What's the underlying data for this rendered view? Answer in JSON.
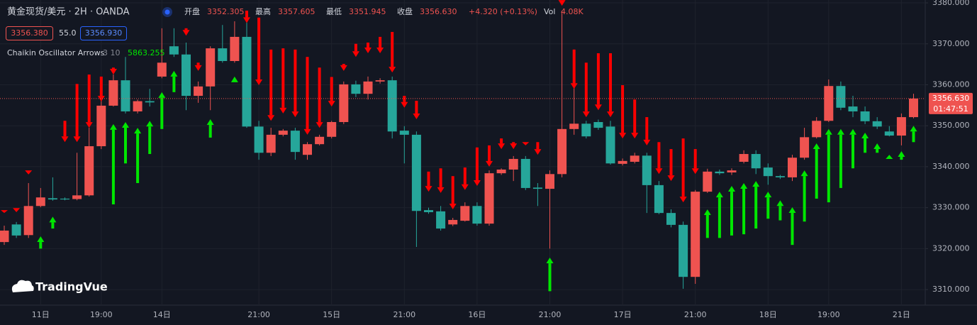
{
  "header": {
    "symbol": "黄金现货/美元 · 2H · OANDA",
    "open_label": "开盘",
    "open": "3352.305",
    "high_label": "最高",
    "high": "3357.605",
    "low_label": "最低",
    "low": "3351.945",
    "close_label": "收盘",
    "close": "3356.630",
    "change": "+4.320 (+0.13%)",
    "vol_label": "Vol",
    "vol": "4.08K",
    "bid": "3356.380",
    "spread": "55.0",
    "ask": "3356.930",
    "indicator": "Chaikin Oscillator Arrows",
    "indicator_params": "3 10",
    "indicator_value": "5863.255",
    "logo": "TradingVue"
  },
  "chart_data": {
    "type": "candlestick",
    "up_color": "#ef5350",
    "down_color": "#26a69a",
    "sell_color": "#ff0000",
    "buy_color": "#00e600",
    "grid": true,
    "ylim": [
      3306.2,
      3380.7
    ],
    "yticks": [
      {
        "value": 3310,
        "label": "3310.000"
      },
      {
        "value": 3320,
        "label": "3320.000"
      },
      {
        "value": 3330,
        "label": "3330.000"
      },
      {
        "value": 3340,
        "label": "3340.000"
      },
      {
        "value": 3350,
        "label": "3350.000"
      },
      {
        "value": 3360,
        "label": "3360.000"
      },
      {
        "value": 3370,
        "label": "3370.000"
      },
      {
        "value": 3380,
        "label": "3380.000"
      }
    ],
    "last_price": {
      "value": 3356.63,
      "label": "3356.630"
    },
    "countdown": "01:47:51",
    "categories": [
      null,
      null,
      null,
      "11日",
      null,
      null,
      null,
      null,
      "19:00",
      null,
      null,
      null,
      null,
      "14日",
      null,
      null,
      null,
      null,
      null,
      null,
      null,
      "21:00",
      null,
      null,
      null,
      null,
      null,
      "15日",
      null,
      null,
      null,
      null,
      null,
      "21:00",
      null,
      null,
      null,
      null,
      null,
      "16日",
      null,
      null,
      null,
      null,
      null,
      "21:00",
      null,
      null,
      null,
      null,
      null,
      "17日",
      null,
      null,
      null,
      null,
      null,
      "21:00",
      null,
      null,
      null,
      null,
      null,
      "18日",
      null,
      null,
      null,
      null,
      "19:00",
      null,
      null,
      null,
      null,
      null,
      "21日",
      null
    ],
    "candles": [
      {
        "o": 3321.6,
        "h": 3325.6,
        "l": 3320.9,
        "c": 3324.4,
        "sell": [
          3329.4,
          3328.7
        ]
      },
      {
        "o": 3325.9,
        "h": 3326.5,
        "l": 3322.6,
        "c": 3323.2,
        "sell": [
          3329.9,
          3328.9
        ]
      },
      {
        "o": 3323.3,
        "h": 3336.0,
        "l": 3322.6,
        "c": 3330.4,
        "sell": [
          3339.1,
          3338.1
        ]
      },
      {
        "o": 3330.4,
        "h": 3334.8,
        "l": 3330.1,
        "c": 3332.5,
        "buy": [
          3320.0,
          3323.0
        ]
      },
      {
        "o": 3332.3,
        "h": 3337.4,
        "l": 3331.7,
        "c": 3332.0,
        "buy": [
          3324.9,
          3327.8
        ]
      },
      {
        "o": 3332.2,
        "h": 3332.5,
        "l": 3331.8,
        "c": 3332.0,
        "sell": [
          3351.2,
          3346.0
        ]
      },
      {
        "o": 3332.1,
        "h": 3343.4,
        "l": 3331.8,
        "c": 3333.0,
        "sell": [
          3360.2,
          3346.0
        ]
      },
      {
        "o": 3333.0,
        "h": 3349.5,
        "l": 3332.7,
        "c": 3345.0,
        "sell": [
          3362.5,
          3349.5
        ]
      },
      {
        "o": 3345.0,
        "h": 3358.2,
        "l": 3344.3,
        "c": 3354.9,
        "sell": [
          3362.0,
          3355.9
        ]
      },
      {
        "o": 3354.9,
        "h": 3362.5,
        "l": 3354.7,
        "c": 3361.1,
        "sell": [
          3364.2,
          3362.5
        ],
        "buy": [
          3330.8,
          3350.4
        ]
      },
      {
        "o": 3361.1,
        "h": 3366.8,
        "l": 3353.0,
        "c": 3353.5,
        "buy": [
          3340.8,
          3350.9
        ]
      },
      {
        "o": 3353.5,
        "h": 3356.4,
        "l": 3353.0,
        "c": 3356.0,
        "buy": [
          3336.0,
          3349.5
        ]
      },
      {
        "o": 3356.0,
        "h": 3359.0,
        "l": 3354.7,
        "c": 3355.7,
        "buy": [
          3343.1,
          3351.2
        ]
      },
      {
        "o": 3362.0,
        "h": 3373.8,
        "l": 3361.6,
        "c": 3365.4,
        "buy": [
          3349.2,
          3358.2
        ]
      },
      {
        "o": 3369.4,
        "h": 3373.8,
        "l": 3366.8,
        "c": 3367.4,
        "buy": [
          3358.2,
          3363.4
        ]
      },
      {
        "o": 3367.4,
        "h": 3370.3,
        "l": 3353.8,
        "c": 3357.3,
        "sell": [
          3373.8,
          3372.0
        ]
      },
      {
        "o": 3357.3,
        "h": 3360.8,
        "l": 3355.6,
        "c": 3359.6,
        "sell": [
          3365.4,
          3363.4
        ]
      },
      {
        "o": 3359.6,
        "h": 3369.4,
        "l": 3353.8,
        "c": 3368.9,
        "buy": [
          3347.1,
          3351.6
        ]
      },
      {
        "o": 3368.9,
        "h": 3374.6,
        "l": 3365.4,
        "c": 3365.8
      },
      {
        "o": 3365.8,
        "h": 3375.5,
        "l": 3365.4,
        "c": 3371.7,
        "buy": [
          3360.6,
          3362.0
        ]
      },
      {
        "o": 3371.7,
        "h": 3378.1,
        "l": 3349.5,
        "c": 3349.8,
        "sell": [
          3378.1,
          3375.1
        ]
      },
      {
        "o": 3349.8,
        "h": 3351.2,
        "l": 3341.7,
        "c": 3343.4,
        "sell": [
          3376.4,
          3359.9
        ]
      },
      {
        "o": 3343.4,
        "h": 3349.5,
        "l": 3342.6,
        "c": 3347.8,
        "sell": [
          3368.6,
          3351.2
        ]
      },
      {
        "o": 3347.8,
        "h": 3349.2,
        "l": 3347.4,
        "c": 3348.8,
        "sell": [
          3368.9,
          3353.0
        ]
      },
      {
        "o": 3348.8,
        "h": 3349.5,
        "l": 3341.7,
        "c": 3343.6,
        "sell": [
          3368.6,
          3352.1
        ]
      },
      {
        "o": 3342.9,
        "h": 3346.0,
        "l": 3341.7,
        "c": 3345.5,
        "sell": [
          3366.8,
          3347.8
        ]
      },
      {
        "o": 3345.5,
        "h": 3347.8,
        "l": 3345.2,
        "c": 3347.3,
        "sell": [
          3364.2,
          3349.5
        ]
      },
      {
        "o": 3347.3,
        "h": 3351.2,
        "l": 3346.9,
        "c": 3350.9,
        "sell": [
          3361.9,
          3354.7
        ]
      },
      {
        "o": 3350.9,
        "h": 3360.8,
        "l": 3350.4,
        "c": 3360.1,
        "sell": [
          3365.1,
          3363.4
        ]
      },
      {
        "o": 3360.1,
        "h": 3361.0,
        "l": 3357.0,
        "c": 3357.8,
        "sell": [
          3370.0,
          3366.8
        ]
      },
      {
        "o": 3357.8,
        "h": 3362.0,
        "l": 3356.4,
        "c": 3360.8,
        "sell": [
          3370.3,
          3367.7
        ]
      },
      {
        "o": 3360.8,
        "h": 3361.6,
        "l": 3360.3,
        "c": 3361.1,
        "sell": [
          3371.7,
          3367.7
        ]
      },
      {
        "o": 3361.1,
        "h": 3362.0,
        "l": 3346.9,
        "c": 3348.6,
        "sell": [
          3372.9,
          3363.0
        ]
      },
      {
        "o": 3348.8,
        "h": 3349.9,
        "l": 3340.8,
        "c": 3347.8,
        "sell": [
          3357.3,
          3354.4
        ]
      },
      {
        "o": 3347.8,
        "h": 3348.6,
        "l": 3320.4,
        "c": 3329.2,
        "sell": [
          3356.1,
          3351.6
        ]
      },
      {
        "o": 3329.4,
        "h": 3330.0,
        "l": 3328.5,
        "c": 3328.9,
        "sell": [
          3338.8,
          3333.9
        ]
      },
      {
        "o": 3329.1,
        "h": 3330.4,
        "l": 3324.4,
        "c": 3324.9,
        "sell": [
          3339.6,
          3333.6
        ]
      },
      {
        "o": 3325.9,
        "h": 3327.5,
        "l": 3325.5,
        "c": 3327.0,
        "sell": [
          3337.7,
          3329.6
        ]
      },
      {
        "o": 3326.8,
        "h": 3331.3,
        "l": 3326.6,
        "c": 3330.4,
        "sell": [
          3339.8,
          3334.3
        ]
      },
      {
        "o": 3330.4,
        "h": 3331.3,
        "l": 3325.6,
        "c": 3326.1,
        "sell": [
          3344.7,
          3335.3
        ]
      },
      {
        "o": 3326.1,
        "h": 3339.1,
        "l": 3325.6,
        "c": 3338.4,
        "sell": [
          3345.2,
          3340.0
        ]
      },
      {
        "o": 3338.4,
        "h": 3339.6,
        "l": 3338.0,
        "c": 3339.3,
        "sell": [
          3346.9,
          3344.3
        ]
      },
      {
        "o": 3339.3,
        "h": 3342.6,
        "l": 3336.5,
        "c": 3341.9,
        "sell": [
          3346.0,
          3344.3
        ]
      },
      {
        "o": 3341.9,
        "h": 3342.6,
        "l": 3334.3,
        "c": 3334.8,
        "sell": [
          3346.0,
          3345.2
        ]
      },
      {
        "o": 3334.9,
        "h": 3336.0,
        "l": 3330.4,
        "c": 3334.6,
        "sell": [
          3346.0,
          3342.9
        ]
      },
      {
        "o": 3334.6,
        "h": 3339.1,
        "l": 3320.0,
        "c": 3338.2,
        "buy": [
          3309.6,
          3317.8
        ]
      },
      {
        "o": 3338.2,
        "h": 3378.1,
        "l": 3337.4,
        "c": 3349.2,
        "sell": [
          3380.7,
          3379.3
        ]
      },
      {
        "o": 3349.2,
        "h": 3368.6,
        "l": 3347.8,
        "c": 3350.5,
        "sell": [
          3368.6,
          3359.0
        ]
      },
      {
        "o": 3350.5,
        "h": 3351.2,
        "l": 3346.9,
        "c": 3347.4,
        "sell": [
          3365.4,
          3352.1
        ]
      },
      {
        "o": 3350.9,
        "h": 3351.5,
        "l": 3349.0,
        "c": 3349.5,
        "sell": [
          3367.7,
          3353.8
        ]
      },
      {
        "o": 3349.8,
        "h": 3351.2,
        "l": 3340.5,
        "c": 3340.8,
        "sell": [
          3367.7,
          3352.1
        ]
      },
      {
        "o": 3340.7,
        "h": 3342.0,
        "l": 3340.3,
        "c": 3341.4,
        "sell": [
          3359.9,
          3346.9
        ]
      },
      {
        "o": 3341.2,
        "h": 3343.4,
        "l": 3340.8,
        "c": 3342.7,
        "sell": [
          3356.4,
          3346.9
        ]
      },
      {
        "o": 3342.7,
        "h": 3343.4,
        "l": 3328.7,
        "c": 3335.5,
        "sell": [
          3352.1,
          3345.2
        ]
      },
      {
        "o": 3335.5,
        "h": 3336.5,
        "l": 3328.4,
        "c": 3328.7,
        "sell": [
          3346.0,
          3338.2
        ]
      },
      {
        "o": 3328.7,
        "h": 3329.6,
        "l": 3325.2,
        "c": 3325.8,
        "sell": [
          3344.3,
          3336.5
        ]
      },
      {
        "o": 3325.8,
        "h": 3326.6,
        "l": 3310.2,
        "c": 3313.1,
        "sell": [
          3346.9,
          3331.3
        ]
      },
      {
        "o": 3313.1,
        "h": 3334.3,
        "l": 3311.4,
        "c": 3333.9,
        "sell": [
          3344.3,
          3338.2
        ]
      },
      {
        "o": 3333.9,
        "h": 3339.5,
        "l": 3333.6,
        "c": 3338.8,
        "buy": [
          3322.6,
          3329.6
        ]
      },
      {
        "o": 3338.8,
        "h": 3339.3,
        "l": 3338.0,
        "c": 3338.4,
        "buy": [
          3322.6,
          3333.9
        ]
      },
      {
        "o": 3338.6,
        "h": 3339.6,
        "l": 3338.0,
        "c": 3339.1,
        "buy": [
          3323.2,
          3335.3
        ]
      },
      {
        "o": 3341.2,
        "h": 3344.0,
        "l": 3340.8,
        "c": 3343.1,
        "buy": [
          3323.5,
          3336.0
        ]
      },
      {
        "o": 3343.1,
        "h": 3344.0,
        "l": 3338.2,
        "c": 3339.6,
        "buy": [
          3324.9,
          3336.5
        ]
      },
      {
        "o": 3339.8,
        "h": 3340.8,
        "l": 3335.6,
        "c": 3337.7,
        "buy": [
          3327.3,
          3333.9
        ]
      },
      {
        "o": 3337.7,
        "h": 3338.0,
        "l": 3337.0,
        "c": 3337.4,
        "buy": [
          3326.9,
          3331.8
        ]
      },
      {
        "o": 3337.4,
        "h": 3342.9,
        "l": 3336.5,
        "c": 3342.2,
        "buy": [
          3320.9,
          3330.1
        ]
      },
      {
        "o": 3342.2,
        "h": 3349.5,
        "l": 3341.7,
        "c": 3347.2,
        "buy": [
          3326.6,
          3339.1
        ]
      },
      {
        "o": 3347.2,
        "h": 3352.1,
        "l": 3346.9,
        "c": 3351.2,
        "buy": [
          3332.2,
          3345.7
        ]
      },
      {
        "o": 3351.2,
        "h": 3361.3,
        "l": 3350.9,
        "c": 3359.7,
        "buy": [
          3331.3,
          3349.2
        ]
      },
      {
        "o": 3359.7,
        "h": 3360.8,
        "l": 3353.8,
        "c": 3354.4,
        "buy": [
          3334.8,
          3349.2
        ]
      },
      {
        "o": 3354.7,
        "h": 3357.3,
        "l": 3352.1,
        "c": 3353.5,
        "buy": [
          3339.6,
          3349.2
        ]
      },
      {
        "o": 3353.5,
        "h": 3354.7,
        "l": 3350.4,
        "c": 3351.1,
        "buy": [
          3343.4,
          3348.3
        ]
      },
      {
        "o": 3351.1,
        "h": 3352.1,
        "l": 3349.2,
        "c": 3349.8,
        "buy": [
          3343.4,
          3345.7
        ]
      },
      {
        "o": 3348.6,
        "h": 3349.9,
        "l": 3347.4,
        "c": 3347.6,
        "buy": [
          3341.9,
          3342.9
        ]
      },
      {
        "o": 3347.6,
        "h": 3353.0,
        "l": 3345.2,
        "c": 3352.1,
        "buy": [
          3341.7,
          3343.8
        ]
      },
      {
        "o": 3352.1,
        "h": 3357.8,
        "l": 3351.8,
        "c": 3356.63,
        "buy": [
          3346.0,
          3350.0
        ]
      }
    ]
  }
}
